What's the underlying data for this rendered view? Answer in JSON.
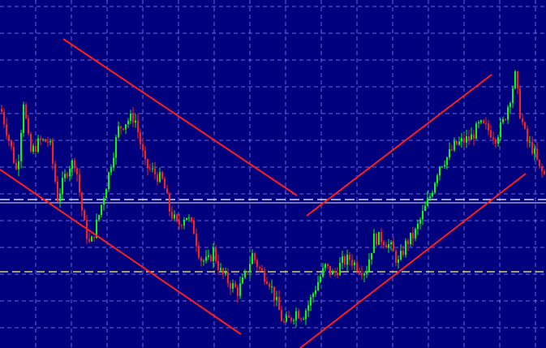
{
  "chart_data": {
    "type": "candlestick",
    "title": "",
    "xlabel": "",
    "ylabel": "",
    "ylim": [
      0,
      429
    ],
    "grid": true,
    "colors": {
      "background": "#00007f",
      "grid": "#8c8cff",
      "bull": "#00ff00",
      "bear": "#ff1e1e",
      "trend": "#ff1e1e",
      "hline1": "#ffffff",
      "hline2": "#ffff66"
    },
    "horizontal_levels": [
      {
        "name": "level-white",
        "value": 181,
        "style": "double-dashed"
      },
      {
        "name": "level-yellow",
        "value": 94,
        "style": "dashed"
      }
    ],
    "trendlines": [
      {
        "name": "upper-left",
        "from": [
          78,
          381
        ],
        "to": [
          366,
          188
        ]
      },
      {
        "name": "lower-left",
        "from": [
          0,
          220
        ],
        "to": [
          297,
          17
        ]
      },
      {
        "name": "upper-right",
        "from": [
          378,
          163
        ],
        "to": [
          606,
          337
        ]
      },
      {
        "name": "lower-right",
        "from": [
          370,
          0
        ],
        "to": [
          648,
          215
        ]
      }
    ],
    "price_path": [
      [
        0,
        295
      ],
      [
        12,
        250
      ],
      [
        20,
        215
      ],
      [
        28,
        305
      ],
      [
        36,
        240
      ],
      [
        48,
        255
      ],
      [
        60,
        255
      ],
      [
        70,
        185
      ],
      [
        84,
        225
      ],
      [
        92,
        230
      ],
      [
        102,
        155
      ],
      [
        110,
        125
      ],
      [
        120,
        160
      ],
      [
        132,
        210
      ],
      [
        145,
        270
      ],
      [
        155,
        280
      ],
      [
        165,
        285
      ],
      [
        178,
        225
      ],
      [
        190,
        215
      ],
      [
        200,
        205
      ],
      [
        208,
        170
      ],
      [
        218,
        150
      ],
      [
        228,
        165
      ],
      [
        238,
        145
      ],
      [
        246,
        110
      ],
      [
        255,
        105
      ],
      [
        262,
        120
      ],
      [
        270,
        95
      ],
      [
        282,
        80
      ],
      [
        292,
        70
      ],
      [
        300,
        85
      ],
      [
        310,
        115
      ],
      [
        320,
        95
      ],
      [
        330,
        85
      ],
      [
        340,
        55
      ],
      [
        348,
        30
      ],
      [
        356,
        35
      ],
      [
        364,
        45
      ],
      [
        372,
        40
      ],
      [
        380,
        55
      ],
      [
        390,
        80
      ],
      [
        400,
        100
      ],
      [
        410,
        90
      ],
      [
        420,
        105
      ],
      [
        430,
        110
      ],
      [
        440,
        100
      ],
      [
        450,
        95
      ],
      [
        460,
        135
      ],
      [
        470,
        135
      ],
      [
        480,
        125
      ],
      [
        490,
        105
      ],
      [
        500,
        130
      ],
      [
        510,
        140
      ],
      [
        520,
        165
      ],
      [
        530,
        190
      ],
      [
        540,
        225
      ],
      [
        550,
        235
      ],
      [
        560,
        250
      ],
      [
        570,
        255
      ],
      [
        580,
        260
      ],
      [
        590,
        275
      ],
      [
        600,
        270
      ],
      [
        610,
        260
      ],
      [
        620,
        280
      ],
      [
        628,
        310
      ],
      [
        634,
        335
      ],
      [
        640,
        290
      ],
      [
        648,
        255
      ],
      [
        656,
        245
      ],
      [
        664,
        220
      ],
      [
        673,
        210
      ]
    ]
  }
}
